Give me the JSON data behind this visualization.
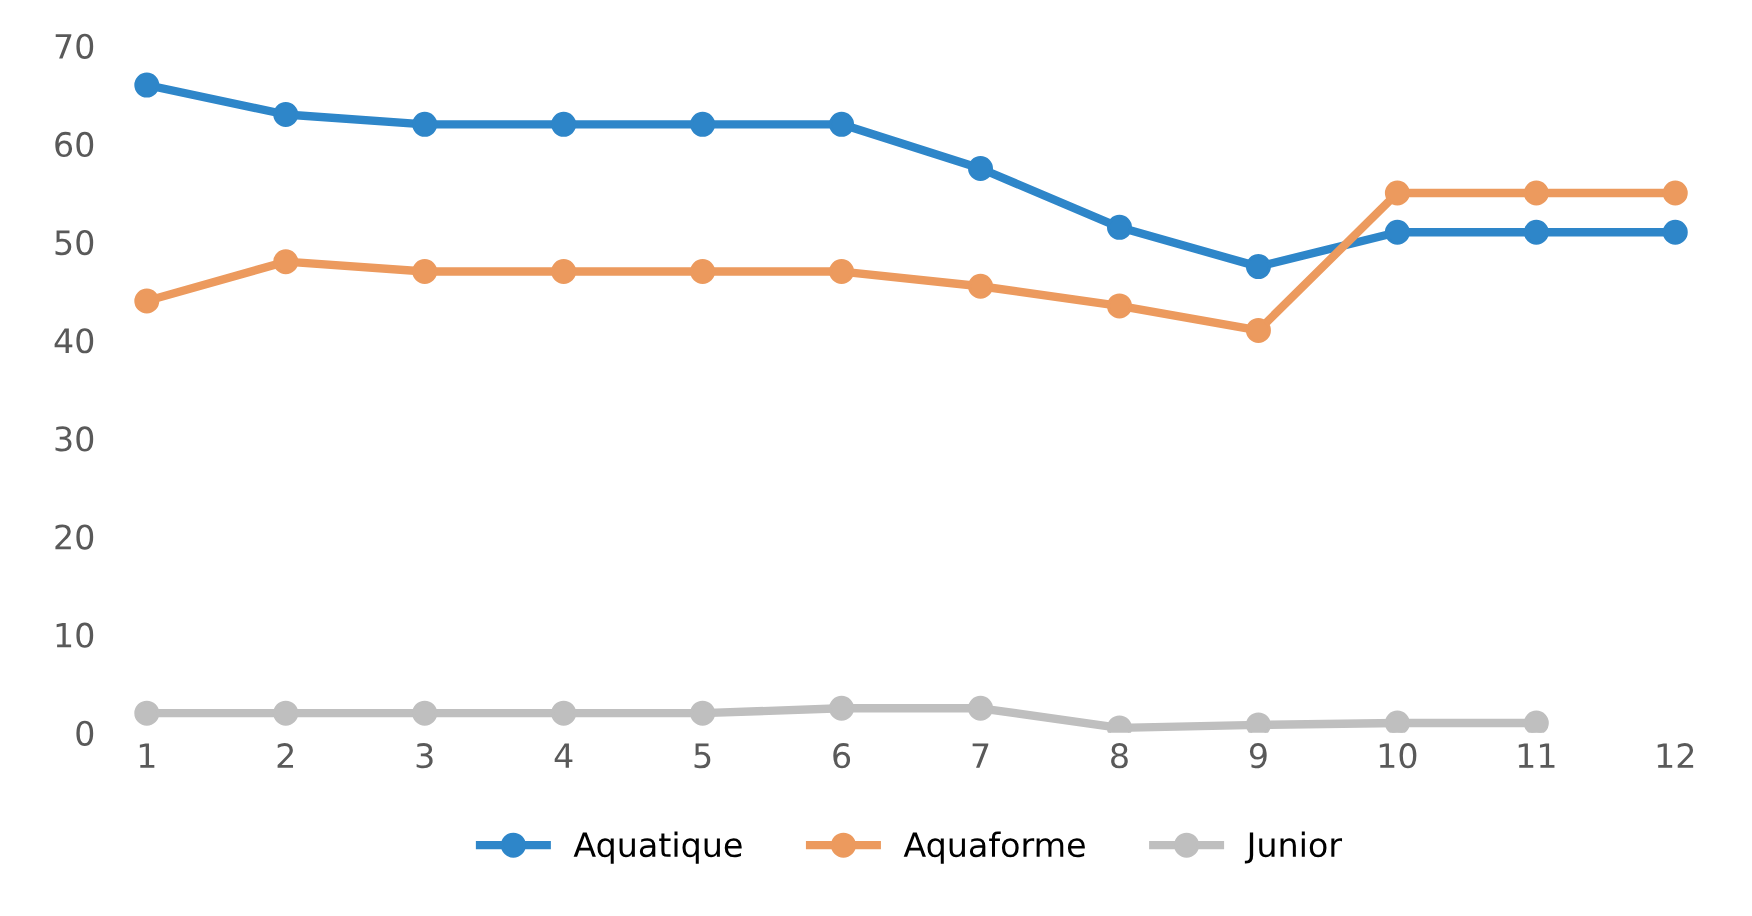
{
  "chart_data": {
    "type": "line",
    "categories": [
      "1",
      "2",
      "3",
      "4",
      "5",
      "6",
      "7",
      "8",
      "9",
      "10",
      "11",
      "12"
    ],
    "series": [
      {
        "name": "Aquatique",
        "color": "#2e86c9",
        "values": [
          66,
          63,
          62,
          62,
          62,
          62,
          57.5,
          51.5,
          47.5,
          51,
          51,
          51
        ]
      },
      {
        "name": "Aquaforme",
        "color": "#ec9a5e",
        "values": [
          44,
          48,
          47,
          47,
          47,
          47,
          45.5,
          43.5,
          41,
          55,
          55,
          55
        ]
      },
      {
        "name": "Junior",
        "color": "#bfbfbf",
        "values": [
          2,
          2,
          2,
          2,
          2,
          2.5,
          2.5,
          0.5,
          0.8,
          1,
          1,
          null
        ]
      }
    ],
    "ylim": [
      0,
      70
    ],
    "yticks": [
      0,
      10,
      20,
      30,
      40,
      50,
      60,
      70
    ],
    "grid": false,
    "legend": "bottom",
    "marker": "circle",
    "line_style": "solid"
  }
}
